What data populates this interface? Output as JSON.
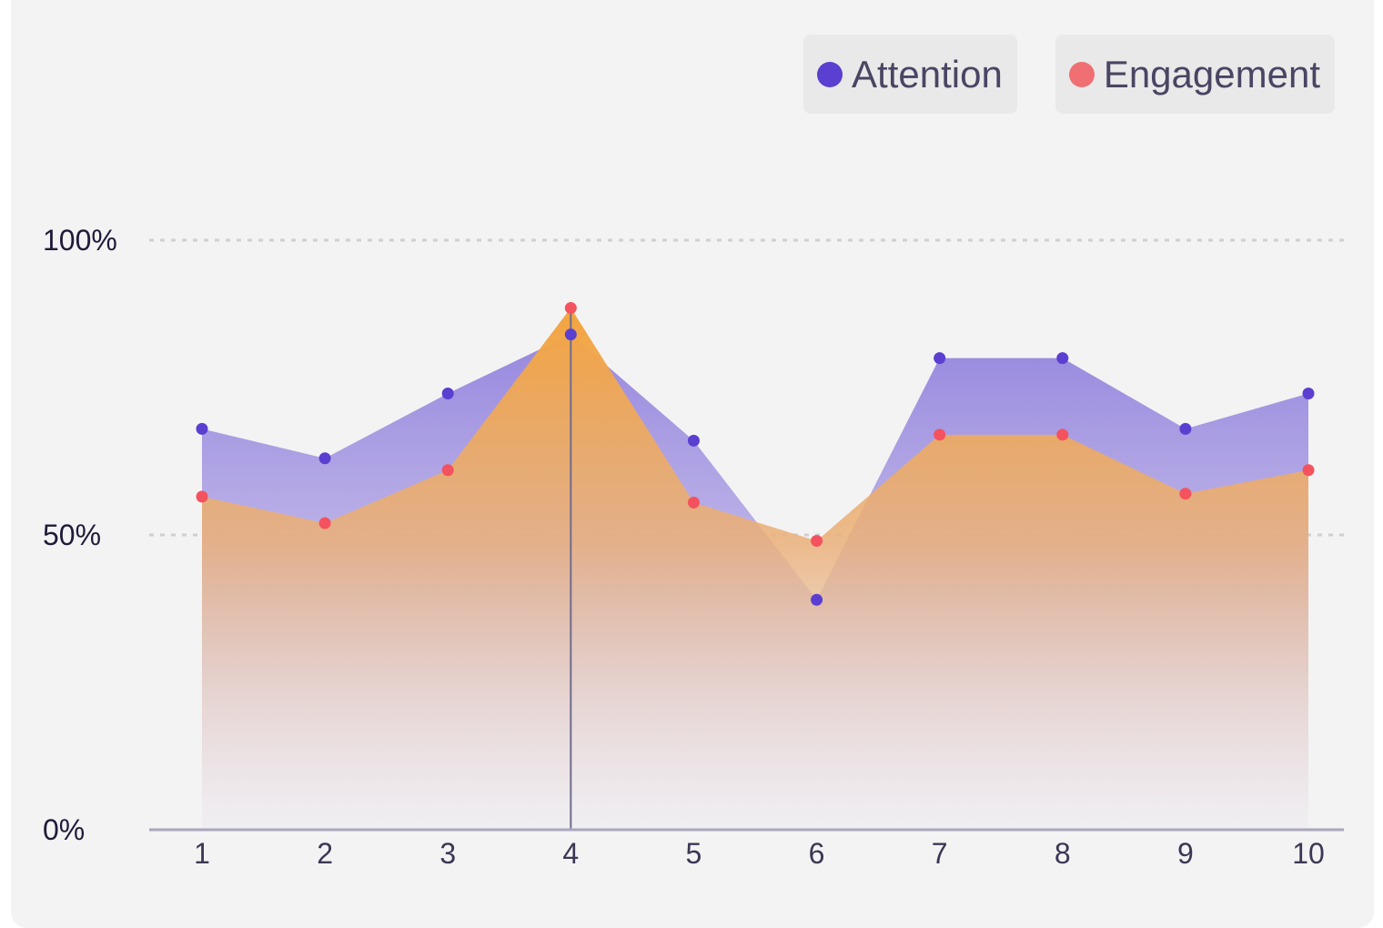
{
  "colors": {
    "attention": "#5b3fd0",
    "engagement": "#f06f73",
    "engagement_marker": "#f4525f",
    "attention_fill": "#8f7fdc",
    "engagement_fill": "#f2a64a",
    "axis": "#a9a6bd",
    "grid": "#cfcfd4",
    "crosshair": "#6f6b8c"
  },
  "legend": [
    {
      "label": "Attention",
      "color": "#5b3fd0"
    },
    {
      "label": "Engagement",
      "color": "#f06f73"
    }
  ],
  "chart_data": {
    "type": "area",
    "x": [
      1,
      2,
      3,
      4,
      5,
      6,
      7,
      8,
      9,
      10
    ],
    "x_tick_labels": [
      "1",
      "2",
      "3",
      "4",
      "5",
      "6",
      "7",
      "8",
      "9",
      "10"
    ],
    "y_tick_labels": [
      "0%",
      "50%",
      "100%"
    ],
    "y_ticks": [
      0,
      50,
      100
    ],
    "ylim": [
      0,
      100
    ],
    "grid": "horizontal dashed",
    "legend_position": "top-right",
    "highlighted_x": 4,
    "series": [
      {
        "name": "Attention",
        "values": [
          68,
          63,
          74,
          84,
          66,
          39,
          80,
          80,
          68,
          74
        ]
      },
      {
        "name": "Engagement",
        "values": [
          56.5,
          52,
          61,
          88.5,
          55.5,
          49,
          67,
          67,
          57,
          61
        ]
      }
    ]
  }
}
